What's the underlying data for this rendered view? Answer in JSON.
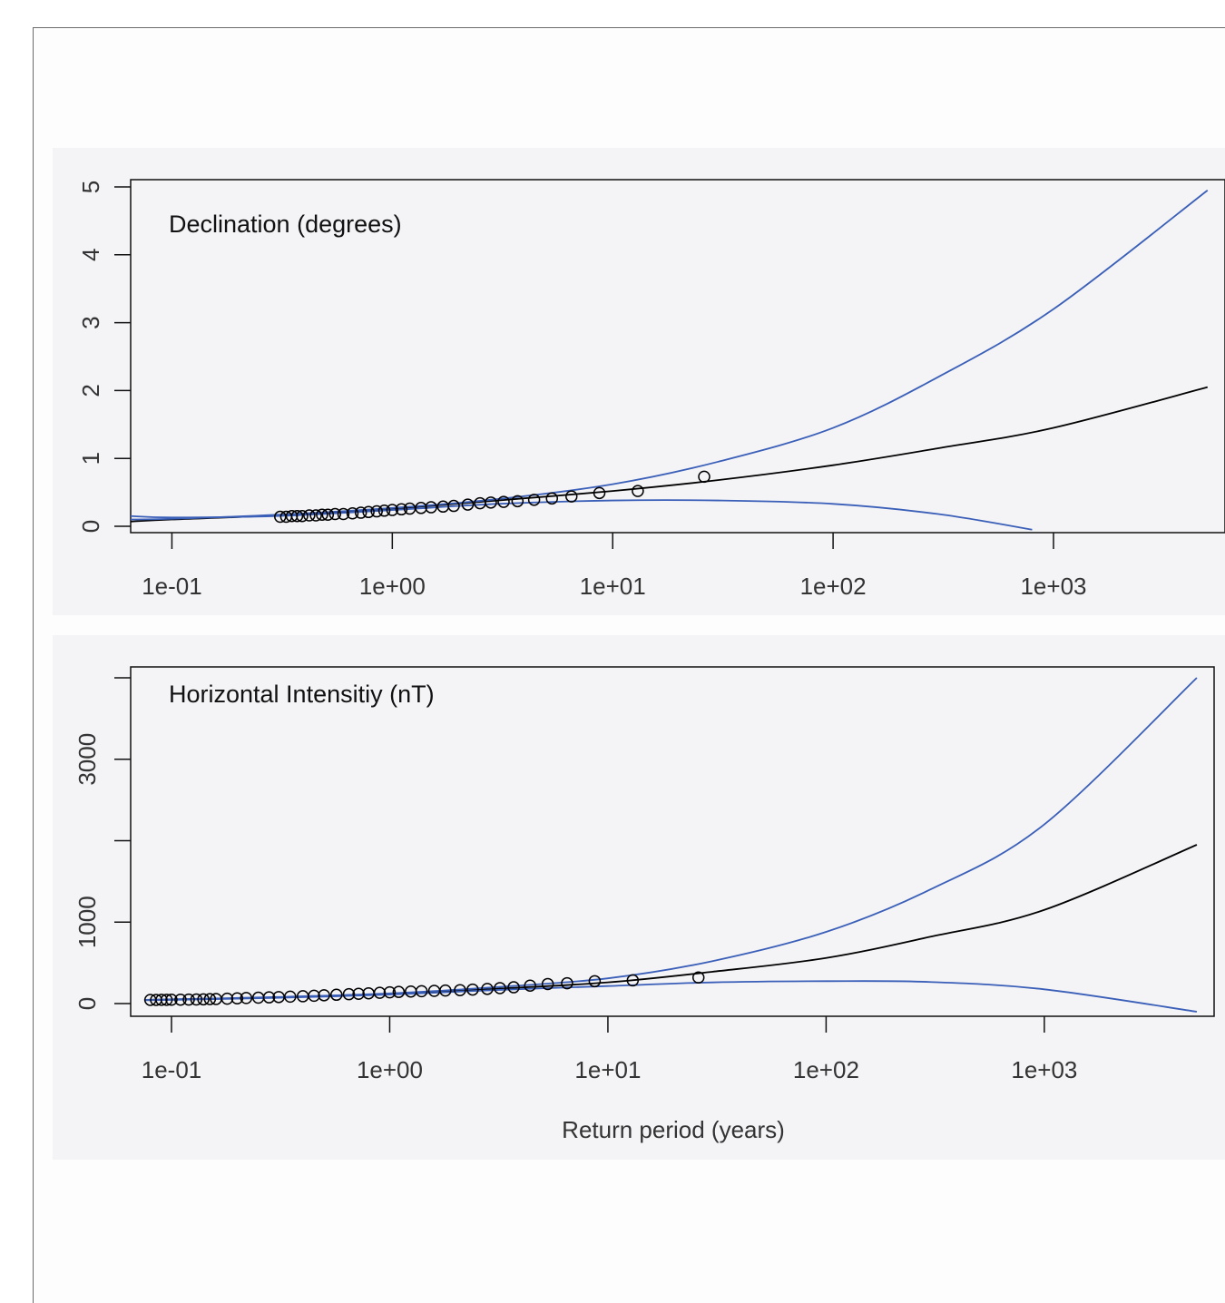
{
  "chart_data": [
    {
      "type": "line",
      "title": "Declination (degrees)",
      "xlabel": "",
      "ylabel": "",
      "x_scale": "log",
      "xlim": [
        0.065,
        6000
      ],
      "ylim": [
        0,
        5
      ],
      "x_ticks": [
        0.1,
        1,
        10,
        100,
        1000
      ],
      "x_tick_labels": [
        "1e-01",
        "1e+00",
        "1e+01",
        "1e+02",
        "1e+03"
      ],
      "y_ticks": [
        0,
        1,
        2,
        3,
        4,
        5
      ],
      "y_tick_labels": [
        "0",
        "1",
        "2",
        "3",
        "4",
        "5"
      ],
      "grid": false,
      "colors": {
        "fit": "#000000",
        "bounds": "#3a5fb8",
        "points": "#000000"
      },
      "series": [
        {
          "role": "fit",
          "x": [
            0.065,
            0.1,
            0.3,
            1,
            3,
            10,
            30,
            100,
            300,
            1000,
            5000
          ],
          "y": [
            0.07,
            0.1,
            0.16,
            0.26,
            0.38,
            0.52,
            0.68,
            0.9,
            1.15,
            1.45,
            2.05
          ]
        },
        {
          "role": "upper",
          "x": [
            0.065,
            0.1,
            0.3,
            1,
            3,
            10,
            30,
            100,
            300,
            1000,
            5000
          ],
          "y": [
            0.1,
            0.11,
            0.17,
            0.27,
            0.4,
            0.62,
            0.95,
            1.45,
            2.2,
            3.2,
            4.95
          ]
        },
        {
          "role": "lower",
          "x": [
            0.065,
            0.1,
            0.3,
            1,
            3,
            10,
            30,
            100,
            300,
            800
          ],
          "y": [
            0.15,
            0.13,
            0.15,
            0.24,
            0.33,
            0.38,
            0.38,
            0.33,
            0.18,
            -0.05
          ]
        },
        {
          "role": "observed",
          "x": [
            0.31,
            0.33,
            0.35,
            0.37,
            0.39,
            0.42,
            0.45,
            0.48,
            0.51,
            0.55,
            0.6,
            0.66,
            0.72,
            0.78,
            0.85,
            0.92,
            1.0,
            1.1,
            1.2,
            1.35,
            1.5,
            1.7,
            1.9,
            2.2,
            2.5,
            2.8,
            3.2,
            3.7,
            4.4,
            5.3,
            6.5,
            8.7,
            13,
            26
          ],
          "y": [
            0.14,
            0.14,
            0.15,
            0.15,
            0.15,
            0.16,
            0.16,
            0.17,
            0.17,
            0.18,
            0.18,
            0.19,
            0.2,
            0.21,
            0.22,
            0.23,
            0.24,
            0.25,
            0.26,
            0.27,
            0.28,
            0.29,
            0.3,
            0.32,
            0.34,
            0.35,
            0.36,
            0.37,
            0.39,
            0.41,
            0.44,
            0.49,
            0.52,
            0.73
          ]
        }
      ]
    },
    {
      "type": "line",
      "title": "Horizontal Intensitiy (nT)",
      "xlabel": "Return period (years)",
      "ylabel": "",
      "x_scale": "log",
      "xlim": [
        0.065,
        6000
      ],
      "ylim": [
        0,
        4000
      ],
      "x_ticks": [
        0.1,
        1,
        10,
        100,
        1000
      ],
      "x_tick_labels": [
        "1e-01",
        "1e+00",
        "1e+01",
        "1e+02",
        "1e+03"
      ],
      "y_ticks": [
        0,
        1000,
        2000,
        3000,
        4000
      ],
      "y_tick_labels": [
        "0",
        "1000",
        "",
        "3000",
        ""
      ],
      "grid": false,
      "colors": {
        "fit": "#000000",
        "bounds": "#3a5fb8",
        "points": "#000000"
      },
      "series": [
        {
          "role": "fit",
          "x": [
            0.075,
            0.1,
            0.3,
            1,
            3,
            10,
            30,
            100,
            300,
            1000,
            5000
          ],
          "y": [
            45,
            50,
            75,
            120,
            180,
            260,
            390,
            560,
            820,
            1150,
            1950
          ]
        },
        {
          "role": "upper",
          "x": [
            0.075,
            0.1,
            0.3,
            1,
            3,
            10,
            30,
            100,
            300,
            1000,
            5000
          ],
          "y": [
            45,
            52,
            80,
            125,
            200,
            310,
            520,
            880,
            1400,
            2200,
            4000
          ]
        },
        {
          "role": "lower",
          "x": [
            0.075,
            0.1,
            0.3,
            1,
            3,
            10,
            30,
            100,
            300,
            1000,
            5000
          ],
          "y": [
            40,
            45,
            70,
            110,
            165,
            215,
            260,
            275,
            265,
            175,
            -100
          ]
        },
        {
          "role": "observed",
          "x": [
            0.08,
            0.085,
            0.09,
            0.095,
            0.1,
            0.11,
            0.12,
            0.13,
            0.14,
            0.15,
            0.16,
            0.18,
            0.2,
            0.22,
            0.25,
            0.28,
            0.31,
            0.35,
            0.4,
            0.45,
            0.5,
            0.57,
            0.65,
            0.72,
            0.8,
            0.9,
            1.0,
            1.1,
            1.25,
            1.4,
            1.6,
            1.8,
            2.1,
            2.4,
            2.8,
            3.2,
            3.7,
            4.4,
            5.3,
            6.5,
            8.7,
            13,
            26
          ],
          "y": [
            45,
            45,
            46,
            46,
            47,
            48,
            49,
            50,
            52,
            54,
            56,
            60,
            64,
            68,
            72,
            76,
            80,
            85,
            90,
            96,
            102,
            108,
            115,
            120,
            126,
            132,
            138,
            143,
            148,
            152,
            156,
            160,
            165,
            172,
            180,
            190,
            200,
            220,
            240,
            250,
            275,
            285,
            320
          ]
        }
      ]
    }
  ]
}
